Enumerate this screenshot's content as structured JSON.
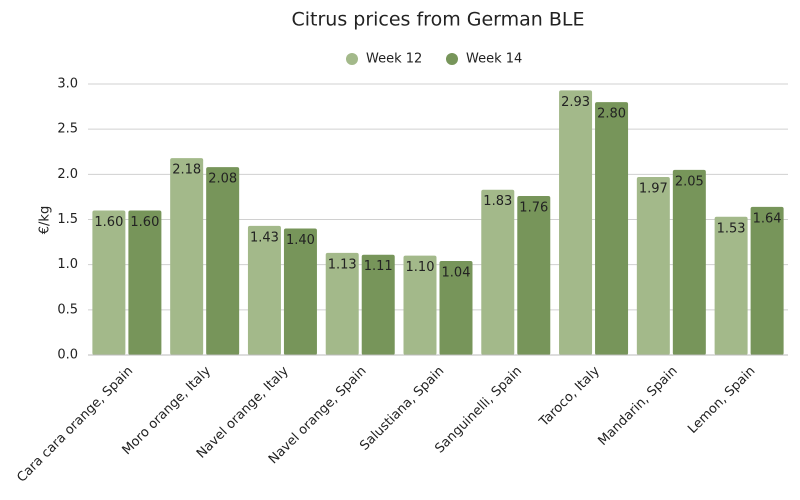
{
  "chart_data": {
    "type": "bar",
    "title": "Citrus prices from German BLE",
    "y_label": "€/kg",
    "categories": [
      "Cara cara orange, Spain",
      "Moro orange, Italy",
      "Navel orange, Italy",
      "Navel orange, Spain",
      "Salustiana, Spain",
      "Sanguinelli, Spain",
      "Taroco, Italy",
      "Mandarin, Spain",
      "Lemon, Spain"
    ],
    "series": [
      {
        "name": "Week 12",
        "color": "#a3b98a",
        "values": [
          1.6,
          2.18,
          1.43,
          1.13,
          1.1,
          1.83,
          2.93,
          1.97,
          1.53
        ],
        "value_labels": [
          "1.60",
          "2.18",
          "1.43",
          "1.13",
          "1.10",
          "1.83",
          "2.93",
          "1.97",
          "1.53"
        ]
      },
      {
        "name": "Week 14",
        "color": "#77955a",
        "values": [
          1.6,
          2.08,
          1.4,
          1.11,
          1.04,
          1.76,
          2.8,
          2.05,
          1.64
        ],
        "value_labels": [
          "1.60",
          "2.08",
          "1.40",
          "1.11",
          "1.04",
          "1.76",
          "2.80",
          "2.05",
          "1.64"
        ]
      }
    ],
    "ylim": [
      0,
      3
    ],
    "yticks": [
      {
        "value": 0,
        "label": "0.0"
      },
      0.5,
      {
        "value": 1,
        "label": "1.0"
      },
      1.5,
      {
        "value": 2,
        "label": "2.0"
      },
      2.5,
      {
        "value": 3,
        "label": "3.0"
      }
    ],
    "grid": true,
    "legend": "top"
  }
}
